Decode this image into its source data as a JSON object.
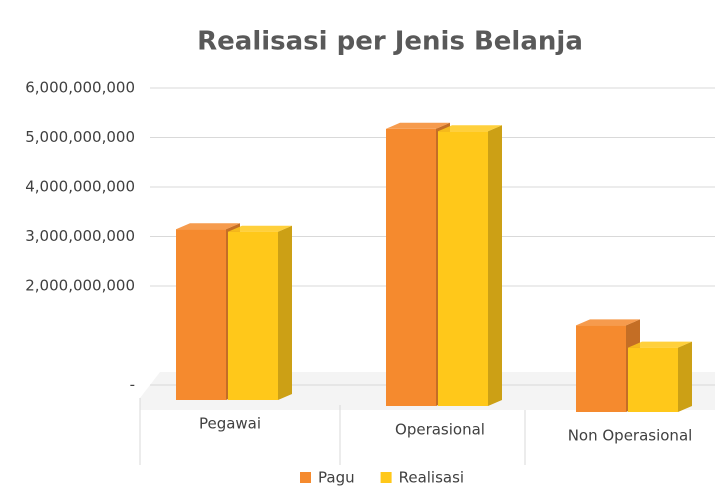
{
  "chart_data": {
    "type": "bar3d",
    "title": "Realisasi per Jenis Belanja",
    "categories": [
      "Pegawai",
      "Operasional",
      "Non Operasional"
    ],
    "series": [
      {
        "name": "Pagu",
        "color": "#f58a2e",
        "values": [
          3450000000,
          5600000000,
          1750000000
        ]
      },
      {
        "name": "Realisasi",
        "color": "#ffc81a",
        "values": [
          3400000000,
          5550000000,
          1300000000
        ]
      }
    ],
    "ylim": [
      0,
      6000000000
    ],
    "yticks": [
      {
        "value": 0,
        "label": "-"
      },
      {
        "value": 2000000000,
        "label": "2,000,000,000"
      },
      {
        "value": 3000000000,
        "label": "3,000,000,000"
      },
      {
        "value": 4000000000,
        "label": "4,000,000,000"
      },
      {
        "value": 5000000000,
        "label": "5,000,000,000"
      },
      {
        "value": 6000000000,
        "label": "6,000,000,000"
      }
    ],
    "grid": true,
    "legend": "bottom"
  }
}
